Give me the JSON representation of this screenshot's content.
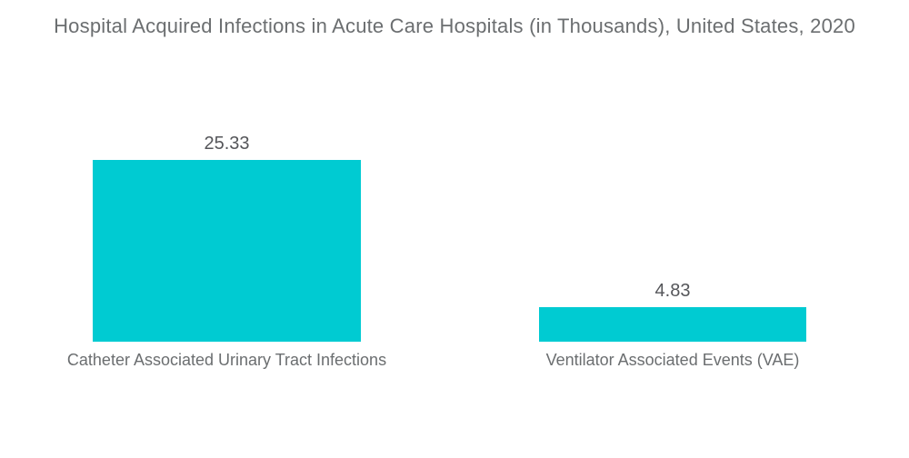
{
  "title": "Hospital Acquired Infections in Acute Care Hospitals (in Thousands), United States, 2020",
  "chart_data": {
    "type": "bar",
    "title": "Hospital Acquired Infections in Acute Care Hospitals (in Thousands), United States, 2020",
    "categories": [
      "Catheter Associated Urinary Tract Infections",
      "Ventilator Associated Events (VAE)"
    ],
    "values": [
      25.33,
      4.83
    ],
    "value_labels": [
      "25.33",
      "4.83"
    ],
    "xlabel": "",
    "ylabel": "",
    "ylim": [
      0,
      25.33
    ],
    "grid": false,
    "legend": false,
    "axes_visible": false,
    "bar_color": "#00CBD2",
    "orientation": "vertical"
  },
  "colors": {
    "background": "#FFFFFF",
    "bar": "#00CBD2",
    "title_text": "#6B6E70",
    "value_text": "#55565A",
    "category_text": "#6B6E70"
  }
}
